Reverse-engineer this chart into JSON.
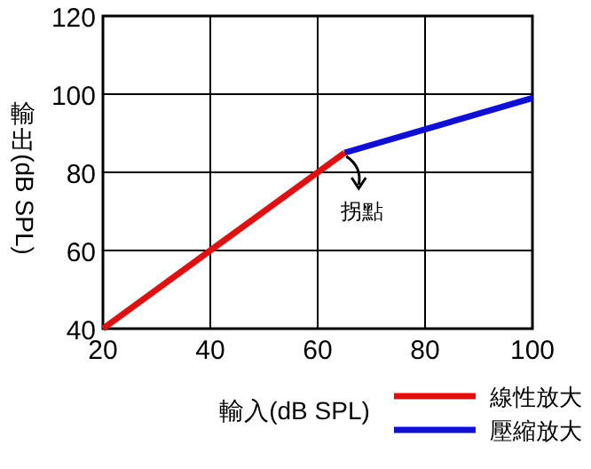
{
  "chart_data": {
    "type": "line",
    "xlabel": "輸入(dB SPL)",
    "ylabel": "輸出(dB SPL)",
    "series": [
      {
        "name": "線性放大",
        "color": "#e01010",
        "x": [
          20,
          65
        ],
        "values": [
          40,
          85
        ]
      },
      {
        "name": "壓縮放大",
        "color": "#1010d0",
        "x": [
          65,
          100
        ],
        "values": [
          85,
          99
        ]
      }
    ],
    "xlim": [
      20,
      100
    ],
    "ylim": [
      40,
      120
    ],
    "xticks": [
      20,
      40,
      60,
      80,
      100
    ],
    "yticks": [
      40,
      60,
      80,
      100,
      120
    ],
    "grid": true,
    "legend": "bottom right",
    "marker": "none",
    "line_style": "solid",
    "annotations": [
      {
        "text": "拐點",
        "x": 65,
        "y": 85
      }
    ]
  }
}
